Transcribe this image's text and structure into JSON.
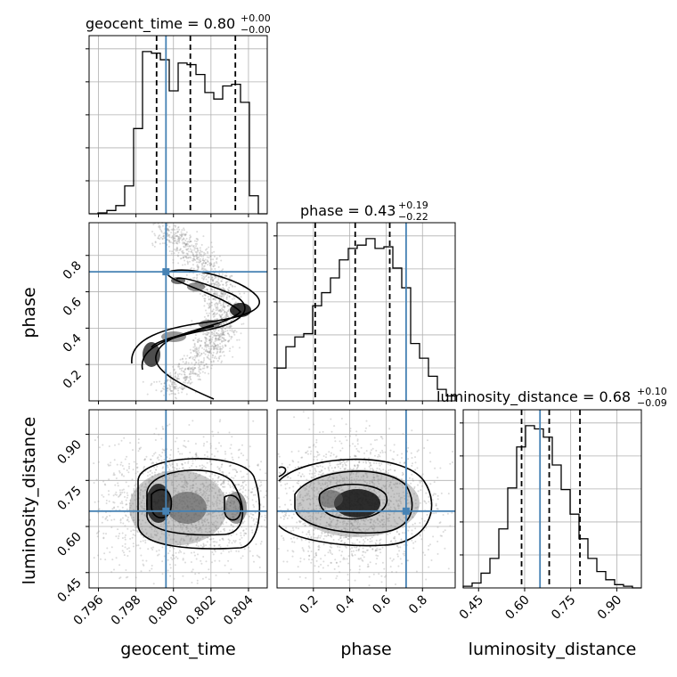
{
  "chart_data": {
    "type": "corner",
    "truth_color": "#4682b4",
    "truths": {
      "geocent_time": 0.7996,
      "phase": 0.71,
      "luminosity_distance": 0.65
    },
    "parameters": [
      {
        "name": "geocent_time",
        "label": "geocent_time",
        "title_main": "geocent_time = 0.80",
        "title_plus": "+0.00",
        "title_minus": "−0.00",
        "xlim": [
          0.7955,
          0.805
        ],
        "ticks": [
          0.796,
          0.798,
          0.8,
          0.802,
          0.804
        ],
        "tick_labels": [
          "0.796",
          "0.798",
          "0.800",
          "0.802",
          "0.804"
        ],
        "quantiles": [
          0.7991,
          0.8009,
          0.8033
        ],
        "hist": [
          0,
          0.005,
          0.02,
          0.05,
          0.17,
          0.52,
          0.99,
          0.98,
          0.94,
          0.75,
          0.92,
          0.91,
          0.85,
          0.74,
          0.7,
          0.78,
          0.79,
          0.68,
          0.11,
          0
        ]
      },
      {
        "name": "phase",
        "label": "phase",
        "title_main": "phase = 0.43",
        "title_plus": "+0.19",
        "title_minus": "−0.22",
        "xlim": [
          0.0,
          0.98
        ],
        "ticks": [
          0.2,
          0.4,
          0.6,
          0.8
        ],
        "tick_labels": [
          "0.2",
          "0.4",
          "0.6",
          "0.8"
        ],
        "quantiles": [
          0.21,
          0.43,
          0.62
        ],
        "hist": [
          0.2,
          0.33,
          0.39,
          0.41,
          0.58,
          0.66,
          0.75,
          0.86,
          0.93,
          0.95,
          0.99,
          0.93,
          0.94,
          0.81,
          0.69,
          0.35,
          0.26,
          0.15,
          0.07,
          0.03
        ]
      },
      {
        "name": "luminosity_distance",
        "label": "luminosity_distance",
        "title_main": "luminosity_distance = 0.68",
        "title_plus": "+0.10",
        "title_minus": "−0.09",
        "xlim": [
          0.4,
          0.98
        ],
        "ticks": [
          0.45,
          0.6,
          0.75,
          0.9
        ],
        "tick_labels": [
          "0.45",
          "0.60",
          "0.75",
          "0.90"
        ],
        "quantiles": [
          0.59,
          0.68,
          0.78
        ],
        "hist": [
          0.01,
          0.03,
          0.09,
          0.18,
          0.36,
          0.61,
          0.86,
          0.99,
          0.97,
          0.92,
          0.75,
          0.6,
          0.45,
          0.3,
          0.18,
          0.1,
          0.05,
          0.02,
          0.01,
          0
        ]
      }
    ]
  }
}
